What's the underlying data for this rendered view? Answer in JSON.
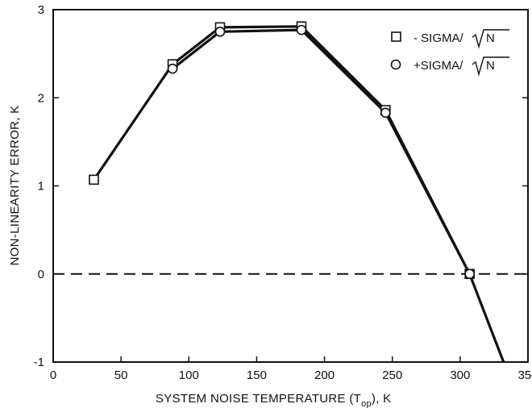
{
  "chart_data": {
    "type": "line",
    "xlabel": "SYSTEM NOISE TEMPERATURE (T",
    "xlabel_sub": "op",
    "xlabel_suffix": "), K",
    "ylabel": "NON-LINEARITY ERROR, K",
    "xlim": [
      0,
      350
    ],
    "ylim": [
      -1,
      3
    ],
    "x_ticks": [
      0,
      50,
      100,
      150,
      200,
      250,
      300,
      350
    ],
    "y_ticks": [
      -1,
      0,
      1,
      2,
      3
    ],
    "grid": false,
    "legend_position": "top-right",
    "reference_line": {
      "y": 0,
      "style": "dashed"
    },
    "series": [
      {
        "name": "- SIGMA/√N",
        "marker": "square",
        "x": [
          30,
          88,
          123,
          183,
          245,
          307,
          332
        ],
        "y": [
          1.07,
          2.38,
          2.8,
          2.81,
          1.86,
          0.0,
          -1.0
        ]
      },
      {
        "name": "+SIGMA/√N",
        "marker": "circle",
        "x": [
          88,
          123,
          183,
          245,
          307
        ],
        "y": [
          2.33,
          2.75,
          2.77,
          1.83,
          0.0
        ]
      }
    ],
    "legend": [
      {
        "marker": "square",
        "text_main": "- SIGMA/",
        "text_sqrt": "N"
      },
      {
        "marker": "circle",
        "text_main": "+SIGMA/",
        "text_sqrt": "N"
      }
    ]
  }
}
